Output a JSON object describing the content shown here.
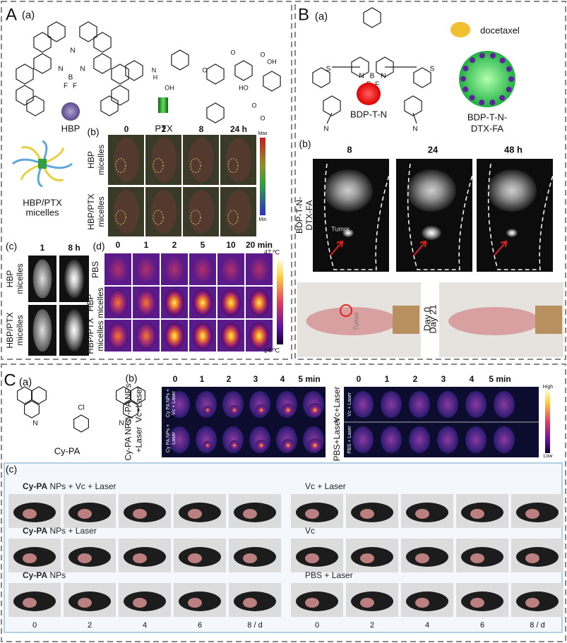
{
  "panel_a": {
    "letter": "A",
    "sub_a": "(a)",
    "atoms_hbp": [
      "N",
      "N",
      "N",
      "B",
      "F",
      "F"
    ],
    "atoms_ptx": [
      "N",
      "H",
      "OH",
      "O",
      "O",
      "O",
      "HO",
      "OH",
      "O",
      "O"
    ],
    "hbp": "HBP",
    "ptx": "PTX",
    "micelles": [
      "HBP/PTX",
      "micelles"
    ],
    "sub_b": "(b)",
    "b_times": [
      "0",
      "2",
      "8",
      "24 h"
    ],
    "b_rows": [
      [
        "HBP",
        "micelles"
      ],
      [
        "HBP/PTX",
        "micelles"
      ]
    ],
    "b_scale": [
      "Max",
      "Min"
    ],
    "sub_c": "(c)",
    "c_times": [
      "1",
      "8 h"
    ],
    "c_rows": [
      [
        "HBP",
        "micelles"
      ],
      [
        "HBP/PTX",
        "micelles"
      ]
    ],
    "sub_d": "(d)",
    "d_times": [
      "0",
      "1",
      "2",
      "5",
      "10",
      "20 min"
    ],
    "d_rows": [
      [
        "PBS"
      ],
      [
        "HBP",
        "micelles"
      ],
      [
        "HBP/PTX",
        "micelles"
      ]
    ],
    "d_scale": [
      "47 ºC",
      "24 ºC"
    ]
  },
  "panel_b": {
    "letter": "B",
    "sub_a": "(a)",
    "atoms": [
      "N",
      "B",
      "N",
      "F",
      "F",
      "S",
      "S",
      "N",
      "N"
    ],
    "bdp": "BDP-T-N",
    "docetaxel": "docetaxel",
    "np": [
      "BDP-T-N-",
      "DTX-FA"
    ],
    "sub_b": "(b)",
    "b_times": [
      "8",
      "24",
      "48 h"
    ],
    "b_row": [
      "BDP-T-N-",
      "DTX-FA"
    ],
    "tumor": "Tumor",
    "sub_c": "(c)",
    "days": [
      "Day 0",
      "Day 21"
    ],
    "tumor_c": "Tumor"
  },
  "panel_c": {
    "letter": "C",
    "sub_a": "(a)",
    "atoms": [
      "Cl",
      "N",
      "N",
      "+"
    ],
    "cypa": "Cy-PA",
    "sub_b": "(b)",
    "times": [
      "0",
      "1",
      "2",
      "3",
      "4",
      "5 min"
    ],
    "times_right": [
      "0",
      "1",
      "2",
      "3",
      "4",
      "5 min"
    ],
    "left_rows": [
      [
        "Cy-PA NPs",
        "Vc+Laser"
      ],
      [
        "Cy-PA NPs",
        "+Laser"
      ]
    ],
    "left_inner": [
      [
        "Cy PA NPs +",
        "Vc + Laser"
      ],
      [
        "Cy PA NPs +",
        "Laser"
      ]
    ],
    "right_rows": [
      "Vc+Laser",
      "PBS+Laser"
    ],
    "right_inner": [
      "Vc + Laser",
      "PBS + Laser"
    ],
    "scale": [
      "High",
      "Low"
    ],
    "sub_c": "(c)",
    "groups": [
      {
        "bold": "Cy-PA",
        "rest": " NPs + Vc + Laser"
      },
      {
        "bold": "Cy-PA",
        "rest": " NPs + Laser"
      },
      {
        "bold": "Cy-PA",
        "rest": " NPs"
      },
      {
        "bold": "",
        "rest": "Vc + Laser"
      },
      {
        "bold": "",
        "rest": "Vc"
      },
      {
        "bold": "",
        "rest": "PBS + Laser"
      }
    ],
    "days_left": [
      "0",
      "2",
      "4",
      "6",
      "8 / d"
    ],
    "days_right": [
      "0",
      "2",
      "4",
      "6",
      "8 / d"
    ]
  }
}
